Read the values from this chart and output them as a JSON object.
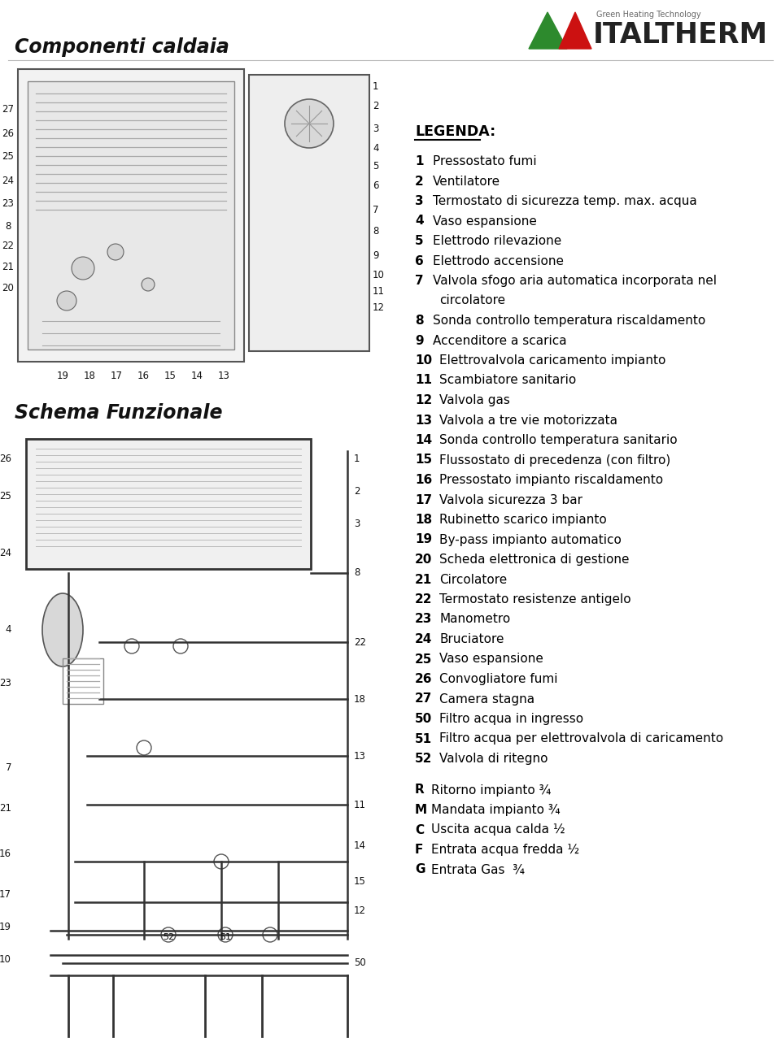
{
  "title": "Componenti caldaia",
  "logo_text": "ITALTHERM",
  "logo_subtitle": "Green Heating Technology",
  "section2_title": "Schema Funzionale",
  "legenda_title": "LEGENDA:",
  "legend_items": [
    {
      "num": "1",
      "text": "Pressostato fumi"
    },
    {
      "num": "2",
      "text": "Ventilatore"
    },
    {
      "num": "3",
      "text": "Termostato di sicurezza temp. max. acqua"
    },
    {
      "num": "4",
      "text": "Vaso espansione"
    },
    {
      "num": "5",
      "text": "Elettrodo rilevazione"
    },
    {
      "num": "6",
      "text": "Elettrodo accensione"
    },
    {
      "num": "7",
      "text": "Valvola sfogo aria automatica incorporata nel",
      "text2": "   circolatore"
    },
    {
      "num": "8",
      "text": "Sonda controllo temperatura riscaldamento"
    },
    {
      "num": "9",
      "text": "Accenditore a scarica"
    },
    {
      "num": "10",
      "text": "Elettrovalvola caricamento impianto"
    },
    {
      "num": "11",
      "text": "Scambiatore sanitario"
    },
    {
      "num": "12",
      "text": "Valvola gas"
    },
    {
      "num": "13",
      "text": "Valvola a tre vie motorizzata"
    },
    {
      "num": "14",
      "text": "Sonda controllo temperatura sanitario"
    },
    {
      "num": "15",
      "text": "Flussostato di precedenza (con filtro)"
    },
    {
      "num": "16",
      "text": "Pressostato impianto riscaldamento"
    },
    {
      "num": "17",
      "text": "Valvola sicurezza 3 bar"
    },
    {
      "num": "18",
      "text": "Rubinetto scarico impianto"
    },
    {
      "num": "19",
      "text": "By-pass impianto automatico"
    },
    {
      "num": "20",
      "text": "Scheda elettronica di gestione"
    },
    {
      "num": "21",
      "text": "Circolatore"
    },
    {
      "num": "22",
      "text": "Termostato resistenze antigelo"
    },
    {
      "num": "23",
      "text": "Manometro"
    },
    {
      "num": "24",
      "text": "Bruciatore"
    },
    {
      "num": "25",
      "text": "Vaso espansione"
    },
    {
      "num": "26",
      "text": "Convogliatore fumi"
    },
    {
      "num": "27",
      "text": "Camera stagna"
    },
    {
      "num": "50",
      "text": "Filtro acqua in ingresso"
    },
    {
      "num": "51",
      "text": "Filtro acqua per elettrovalvola di caricamento"
    },
    {
      "num": "52",
      "text": "Valvola di ritegno"
    }
  ],
  "connection_items": [
    {
      "letter": "R",
      "text": "Ritorno impianto ¾"
    },
    {
      "letter": "M",
      "text": "Mandata impianto ¾"
    },
    {
      "letter": "C",
      "text": "Uscita acqua calda ½"
    },
    {
      "letter": "F",
      "text": "Entrata acqua fredda ½"
    },
    {
      "letter": "G",
      "text": "Entrata Gas  ¾"
    }
  ],
  "bg_color": "#ffffff",
  "text_color": "#000000"
}
